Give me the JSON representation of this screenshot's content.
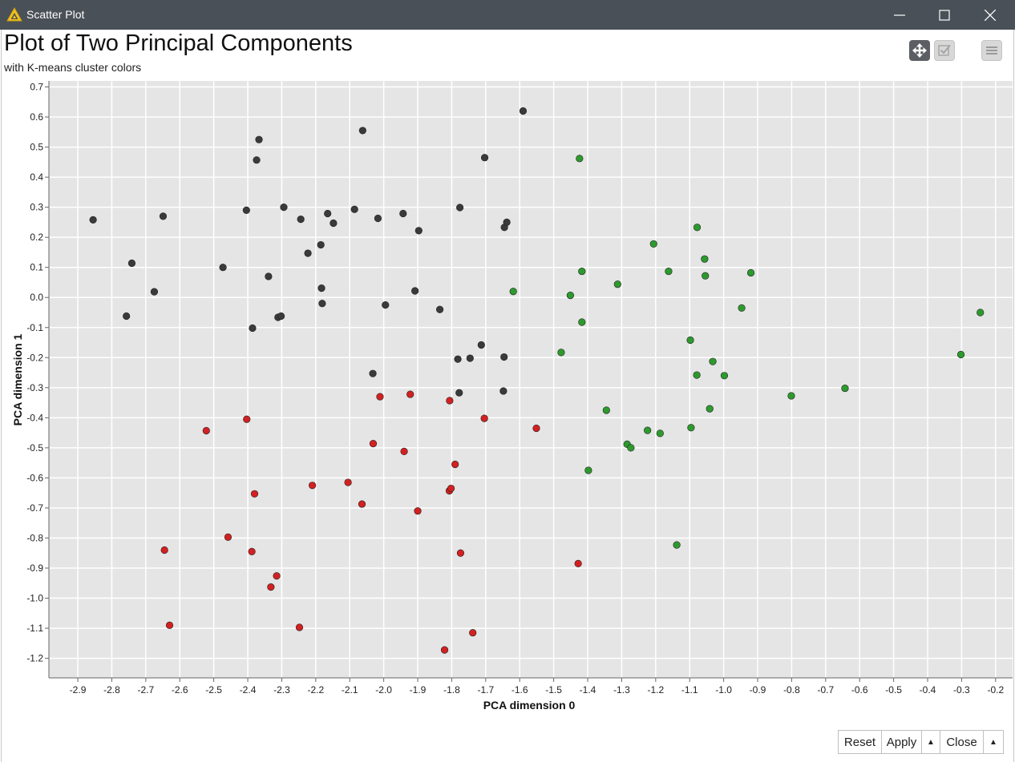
{
  "window": {
    "title": "Scatter Plot",
    "icon": "knime-triangle-icon",
    "controls": [
      "minimize",
      "maximize",
      "close"
    ]
  },
  "chart_header": {
    "title": "Plot of Two Principal Components",
    "subtitle": "with K-means cluster colors"
  },
  "toolbar": {
    "pan_tool": "pan-move-icon",
    "select_tool": "checkbox-select-icon",
    "menu": "hamburger-menu-icon"
  },
  "buttons": {
    "reset": "Reset",
    "apply": "Apply",
    "apply_menu": "▲",
    "close": "Close",
    "close_menu": "▲"
  },
  "chart_data": {
    "type": "scatter",
    "title": "Plot of Two Principal Components",
    "subtitle": "with K-means cluster colors",
    "xlabel": "PCA dimension 0",
    "ylabel": "PCA dimension 1",
    "xlim": [
      -2.985,
      -0.15
    ],
    "ylim": [
      -1.265,
      0.72
    ],
    "xticks": [
      "-2.9",
      "-2.8",
      "-2.7",
      "-2.6",
      "-2.5",
      "-2.4",
      "-2.3",
      "-2.2",
      "-2.1",
      "-2.0",
      "-1.9",
      "-1.8",
      "-1.7",
      "-1.6",
      "-1.5",
      "-1.4",
      "-1.3",
      "-1.2",
      "-1.1",
      "-1.0",
      "-0.9",
      "-0.8",
      "-0.7",
      "-0.6",
      "-0.5",
      "-0.4",
      "-0.3",
      "-0.2"
    ],
    "yticks": [
      "0.7",
      "0.6",
      "0.5",
      "0.4",
      "0.3",
      "0.2",
      "0.1",
      "0.0",
      "-0.1",
      "-0.2",
      "-0.3",
      "-0.4",
      "-0.5",
      "-0.6",
      "-0.7",
      "-0.8",
      "-0.9",
      "-1.0",
      "-1.1",
      "-1.2"
    ],
    "grid": true,
    "background": "#e5e5e5",
    "series": [
      {
        "color": "#3a3a3a",
        "points": [
          [
            -2.855,
            0.258
          ],
          [
            -2.757,
            -0.062
          ],
          [
            -2.741,
            0.114
          ],
          [
            -2.675,
            0.019
          ],
          [
            -2.649,
            0.27
          ],
          [
            -2.473,
            0.1
          ],
          [
            -2.404,
            0.29
          ],
          [
            -2.386,
            -0.102
          ],
          [
            -2.374,
            0.457
          ],
          [
            -2.367,
            0.525
          ],
          [
            -2.339,
            0.07
          ],
          [
            -2.311,
            -0.066
          ],
          [
            -2.302,
            -0.062
          ],
          [
            -2.294,
            0.3
          ],
          [
            -2.244,
            0.26
          ],
          [
            -2.223,
            0.147
          ],
          [
            -2.185,
            0.175
          ],
          [
            -2.183,
            0.031
          ],
          [
            -2.181,
            -0.02
          ],
          [
            -2.165,
            0.279
          ],
          [
            -2.148,
            0.247
          ],
          [
            -2.086,
            0.293
          ],
          [
            -2.062,
            0.555
          ],
          [
            -2.032,
            -0.253
          ],
          [
            -2.017,
            0.263
          ],
          [
            -1.995,
            -0.025
          ],
          [
            -1.943,
            0.279
          ],
          [
            -1.908,
            0.022
          ],
          [
            -1.897,
            0.222
          ],
          [
            -1.835,
            -0.04
          ],
          [
            -1.782,
            -0.205
          ],
          [
            -1.776,
            0.299
          ],
          [
            -1.778,
            -0.317
          ],
          [
            -1.746,
            -0.202
          ],
          [
            -1.713,
            -0.158
          ],
          [
            -1.703,
            0.465
          ],
          [
            -1.648,
            -0.311
          ],
          [
            -1.645,
            0.233
          ],
          [
            -1.646,
            -0.198
          ],
          [
            -1.638,
            0.25
          ],
          [
            -1.59,
            0.62
          ]
        ]
      },
      {
        "color": "#2d9a2d",
        "points": [
          [
            -1.619,
            0.02
          ],
          [
            -1.478,
            -0.183
          ],
          [
            -1.451,
            0.007
          ],
          [
            -1.424,
            0.462
          ],
          [
            -1.417,
            0.087
          ],
          [
            -1.417,
            -0.082
          ],
          [
            -1.398,
            -0.575
          ],
          [
            -1.345,
            -0.375
          ],
          [
            -1.312,
            0.044
          ],
          [
            -1.284,
            -0.488
          ],
          [
            -1.273,
            -0.5
          ],
          [
            -1.224,
            -0.442
          ],
          [
            -1.206,
            0.178
          ],
          [
            -1.187,
            -0.452
          ],
          [
            -1.162,
            0.087
          ],
          [
            -1.138,
            -0.823
          ],
          [
            -1.098,
            -0.142
          ],
          [
            -1.096,
            -0.433
          ],
          [
            -1.078,
            0.233
          ],
          [
            -1.079,
            -0.258
          ],
          [
            -1.056,
            0.128
          ],
          [
            -1.054,
            0.072
          ],
          [
            -1.041,
            -0.37
          ],
          [
            -1.032,
            -0.213
          ],
          [
            -0.998,
            -0.26
          ],
          [
            -0.947,
            -0.035
          ],
          [
            -0.92,
            0.082
          ],
          [
            -0.801,
            -0.327
          ],
          [
            -0.643,
            -0.302
          ],
          [
            -0.302,
            -0.19
          ],
          [
            -0.245,
            -0.05
          ]
        ]
      },
      {
        "color": "#d42020",
        "points": [
          [
            -2.645,
            -0.84
          ],
          [
            -2.63,
            -1.09
          ],
          [
            -2.522,
            -0.443
          ],
          [
            -2.458,
            -0.797
          ],
          [
            -2.403,
            -0.405
          ],
          [
            -2.388,
            -0.845
          ],
          [
            -2.38,
            -0.653
          ],
          [
            -2.332,
            -0.963
          ],
          [
            -2.315,
            -0.926
          ],
          [
            -2.248,
            -1.097
          ],
          [
            -2.21,
            -0.625
          ],
          [
            -2.105,
            -0.615
          ],
          [
            -2.064,
            -0.687
          ],
          [
            -2.031,
            -0.486
          ],
          [
            -2.011,
            -0.33
          ],
          [
            -1.94,
            -0.512
          ],
          [
            -1.922,
            -0.322
          ],
          [
            -1.9,
            -0.71
          ],
          [
            -1.821,
            -1.172
          ],
          [
            -1.806,
            -0.343
          ],
          [
            -1.807,
            -0.643
          ],
          [
            -1.802,
            -0.635
          ],
          [
            -1.79,
            -0.555
          ],
          [
            -1.774,
            -0.85
          ],
          [
            -1.738,
            -1.115
          ],
          [
            -1.704,
            -0.402
          ],
          [
            -1.551,
            -0.435
          ],
          [
            -1.428,
            -0.885
          ]
        ]
      }
    ]
  }
}
